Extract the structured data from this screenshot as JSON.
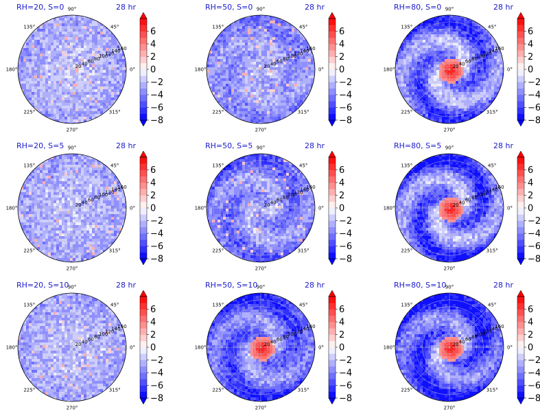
{
  "chart_data": {
    "type": "heatmap",
    "colormap": "bwr",
    "levels": [
      -8,
      -7,
      -6,
      -5,
      -4,
      -3,
      -2,
      -1,
      0,
      1,
      2,
      3,
      4,
      5,
      6,
      7
    ],
    "colorbar_ticks": [
      "6",
      "4",
      "2",
      "0",
      "−2",
      "−4",
      "−6",
      "−8"
    ],
    "angular_labels": [
      "90°",
      "45°",
      "0°",
      "315°",
      "270°",
      "225°",
      "180°",
      "135°"
    ],
    "radial_labels": [
      "20",
      "40",
      "60",
      "80",
      "100",
      "120",
      "140",
      "160"
    ],
    "grid": true,
    "panels": [
      {
        "title": "RH=20, S=0",
        "time": "28 hr",
        "core": 0.4,
        "spiral": 0.0,
        "blue": 0.25
      },
      {
        "title": "RH=50, S=0",
        "time": "28 hr",
        "core": 0.3,
        "spiral": 0.2,
        "blue": 0.4
      },
      {
        "title": "RH=80, S=0",
        "time": "28 hr",
        "core": 1.0,
        "spiral": 0.7,
        "blue": 0.55
      },
      {
        "title": "RH=20, S=5",
        "time": "28 hr",
        "core": 0.3,
        "spiral": 0.0,
        "blue": 0.25
      },
      {
        "title": "RH=50, S=5",
        "time": "28 hr",
        "core": 0.3,
        "spiral": 0.4,
        "blue": 0.5
      },
      {
        "title": "RH=80, S=5",
        "time": "28 hr",
        "core": 1.0,
        "spiral": 0.8,
        "blue": 0.6
      },
      {
        "title": "RH=20, S=10",
        "time": "28 hr",
        "core": 0.2,
        "spiral": 0.0,
        "blue": 0.25
      },
      {
        "title": "RH=50, S=10",
        "time": "28 hr",
        "core": 1.0,
        "spiral": 0.5,
        "blue": 0.65
      },
      {
        "title": "RH=80, S=10",
        "time": "28 hr",
        "core": 1.0,
        "spiral": 0.7,
        "blue": 0.75
      }
    ]
  }
}
